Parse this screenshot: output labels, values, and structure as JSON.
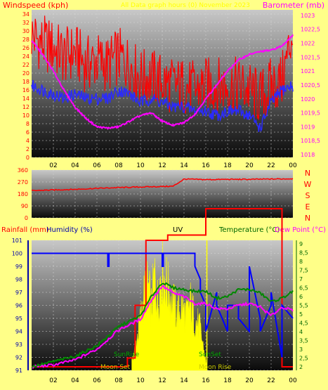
{
  "colors": {
    "background": "#ffff88",
    "wind_speed": "#ff0000",
    "wind_avg": "#2a2aff",
    "barometer": "#ff00ff",
    "wind_dir": "#ff0000",
    "rain": "#ff0000",
    "humidity": "#0000ff",
    "uv": "#ffff00",
    "temperature": "#008800",
    "dewpoint": "#ff00ff",
    "temp_axis": "#006600",
    "axis_blue": "#0000aa"
  },
  "top_panel": {
    "left_title": "Windspeed (kph)",
    "center_title": "All Data graph hours (0) November 2023",
    "right_title": "Barometer (mb)"
  },
  "dir_panel": {
    "compass": [
      "N",
      "W",
      "S",
      "E",
      "N"
    ]
  },
  "bottom_panel": {
    "rain_title": "Rainfall (mm)",
    "humidity_title": "Humidity (%)",
    "uv_title": "UV",
    "temp_title": "Temperature (°C)",
    "dew_title": "Dew Point (°C)",
    "sunrise": "SunRise",
    "sunset": "SunSet",
    "moonset": "Moon Set",
    "moonrise": "Moon Rise"
  },
  "chart_data": [
    {
      "type": "line",
      "x_ticks": [
        "02",
        "04",
        "06",
        "08",
        "10",
        "12",
        "14",
        "16",
        "18",
        "20",
        "22",
        "00"
      ],
      "y_left": {
        "ticks": [
          0,
          2,
          4,
          6,
          8,
          10,
          12,
          14,
          16,
          18,
          20,
          22,
          24,
          26,
          28,
          30,
          32,
          34
        ],
        "ylim": [
          0,
          35
        ]
      },
      "y_right": {
        "ticks": [
          "1018",
          "1018,5",
          "1019",
          "1019,5",
          "1020",
          "1020,5",
          "1021",
          "1021,5",
          "1022",
          "1022,5",
          "1023"
        ],
        "ylim": [
          1017.9,
          1023.2
        ]
      },
      "x_hours": [
        0,
        1,
        2,
        3,
        4,
        5,
        6,
        7,
        8,
        9,
        10,
        11,
        12,
        13,
        14,
        15,
        16,
        17,
        18,
        19,
        20,
        21,
        22,
        23,
        24
      ],
      "series": [
        {
          "key": "gust",
          "values": [
            29,
            27,
            26,
            24,
            25,
            22,
            23,
            22,
            24,
            22,
            19,
            19,
            18,
            17,
            17,
            16,
            17,
            17,
            17,
            17,
            16,
            14,
            17,
            18,
            30
          ]
        },
        {
          "key": "average",
          "values": [
            17,
            16,
            15,
            14,
            15,
            14,
            14,
            14,
            16,
            15,
            13,
            14,
            13,
            12,
            12,
            11,
            11,
            10,
            11,
            11,
            10,
            7,
            13,
            16,
            17
          ]
        },
        {
          "key": "barometer",
          "values": [
            1022.1,
            1021.6,
            1021.0,
            1020.3,
            1019.7,
            1019.3,
            1019.0,
            1018.95,
            1019.0,
            1019.2,
            1019.4,
            1019.5,
            1019.2,
            1019.05,
            1019.15,
            1019.45,
            1020.0,
            1020.5,
            1021.0,
            1021.4,
            1021.6,
            1021.7,
            1021.75,
            1021.9,
            1022.3
          ]
        }
      ]
    },
    {
      "type": "line",
      "x_ticks": [
        "02",
        "04",
        "06",
        "08",
        "10",
        "12",
        "14",
        "16",
        "18",
        "20",
        "22",
        "00"
      ],
      "y_ticks": [
        0,
        90,
        180,
        270,
        360
      ],
      "ylim": [
        0,
        360
      ],
      "x_hours": [
        0,
        2,
        4,
        6,
        8,
        10,
        12,
        13,
        14,
        16,
        18,
        20,
        22,
        24
      ],
      "series": [
        {
          "key": "direction",
          "values": [
            205,
            210,
            215,
            222,
            228,
            232,
            236,
            238,
            292,
            288,
            290,
            290,
            292,
            295
          ]
        }
      ]
    },
    {
      "type": "line",
      "x_ticks": [
        "02",
        "04",
        "06",
        "08",
        "10",
        "12",
        "14",
        "16",
        "18",
        "20",
        "22",
        "00"
      ],
      "y_humidity": {
        "ticks": [
          91,
          92,
          93,
          94,
          95,
          96,
          97,
          98,
          99,
          100,
          101
        ],
        "ylim": [
          91,
          101
        ]
      },
      "y_temp": {
        "ticks": [
          "2",
          "2,5",
          "3",
          "3,5",
          "4",
          "4,5",
          "5",
          "5,5",
          "6",
          "6,5",
          "7",
          "7,5",
          "8",
          "8,5",
          "9"
        ],
        "ylim": [
          1.8,
          9.2
        ]
      },
      "series": [
        {
          "key": "rain_total",
          "x_hours": [
            0,
            8.8,
            8.8,
            9.5,
            9.5,
            10.5,
            10.5,
            12.5,
            12.5,
            16,
            16,
            23,
            23,
            24
          ],
          "values": [
            0,
            0,
            0.5,
            0.5,
            3.5,
            3.5,
            7.2,
            7.2,
            7.5,
            7.5,
            9,
            9,
            0,
            0
          ]
        },
        {
          "key": "humidity",
          "x_hours": [
            0,
            7,
            7,
            7.1,
            7.1,
            12,
            12,
            12.1,
            12.1,
            15,
            15,
            15.5,
            15.5,
            16,
            16,
            17,
            17,
            18,
            18,
            19,
            19,
            20,
            20,
            21,
            21,
            22,
            22,
            23,
            23,
            24
          ],
          "values": [
            100,
            100,
            99,
            99,
            100,
            100,
            99,
            99,
            100,
            100,
            99,
            98,
            97,
            96,
            94,
            97,
            96,
            94,
            96,
            96,
            95,
            94,
            99,
            95,
            94,
            96,
            97,
            92,
            96,
            95
          ]
        },
        {
          "key": "uv",
          "x_hours": [
            9.2,
            9.6,
            10,
            10.3,
            10.7,
            11,
            11.3,
            11.6,
            11.9,
            12.2,
            12.6,
            13,
            13.4,
            13.8,
            14.2,
            14.6,
            15,
            15.4,
            15.7,
            16.1
          ],
          "values": [
            0.3,
            1.0,
            1.8,
            2.6,
            3.0,
            2.2,
            3.4,
            2.4,
            3.6,
            3.3,
            2.8,
            2.4,
            2.0,
            2.3,
            1.9,
            2.4,
            1.8,
            1.6,
            1.0,
            0.1
          ]
        },
        {
          "key": "temperature",
          "x_hours": [
            0,
            2,
            4,
            6,
            8,
            9,
            10,
            11,
            12,
            13,
            14,
            15,
            16,
            17,
            18,
            19,
            20,
            21,
            22,
            23,
            24
          ],
          "values": [
            2.0,
            2.3,
            2.6,
            3.2,
            4.3,
            4.6,
            4.9,
            6.0,
            6.8,
            6.5,
            6.4,
            6.3,
            6.3,
            5.9,
            6.0,
            6.4,
            6.4,
            6.2,
            5.7,
            5.9,
            6.3
          ]
        },
        {
          "key": "dewpoint",
          "x_hours": [
            0,
            2,
            4,
            6,
            8,
            9,
            10,
            11,
            12,
            13,
            14,
            15,
            16,
            17,
            18,
            19,
            20,
            21,
            22,
            23,
            24
          ],
          "values": [
            2.0,
            2.1,
            2.4,
            3.0,
            4.1,
            4.4,
            4.7,
            5.8,
            6.6,
            6.2,
            6.0,
            5.6,
            5.6,
            5.3,
            5.3,
            5.5,
            5.6,
            5.4,
            4.9,
            5.4,
            5.2
          ]
        }
      ]
    }
  ]
}
